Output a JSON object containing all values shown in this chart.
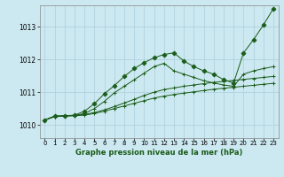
{
  "title": "Graphe pression niveau de la mer (hPa)",
  "bg_color": "#cce8f0",
  "grid_color": "#aacfdc",
  "line_color": "#1a5c1a",
  "xlim": [
    -0.5,
    23.5
  ],
  "ylim": [
    1009.6,
    1013.65
  ],
  "xticks": [
    0,
    1,
    2,
    3,
    4,
    5,
    6,
    7,
    8,
    9,
    10,
    11,
    12,
    13,
    14,
    15,
    16,
    17,
    18,
    19,
    20,
    21,
    22,
    23
  ],
  "yticks": [
    1010,
    1011,
    1012,
    1013
  ],
  "lines": [
    {
      "x": [
        0,
        1,
        2,
        3,
        4,
        5,
        6,
        7,
        8,
        9,
        10,
        11,
        12,
        13,
        14,
        15,
        16,
        17,
        18,
        19,
        20,
        21,
        22,
        23
      ],
      "y": [
        1010.15,
        1010.25,
        1010.27,
        1010.28,
        1010.3,
        1010.35,
        1010.42,
        1010.5,
        1010.58,
        1010.66,
        1010.74,
        1010.82,
        1010.88,
        1010.93,
        1010.97,
        1011.01,
        1011.05,
        1011.09,
        1011.12,
        1011.15,
        1011.18,
        1011.21,
        1011.24,
        1011.27
      ],
      "marker": "+"
    },
    {
      "x": [
        0,
        1,
        2,
        3,
        4,
        5,
        6,
        7,
        8,
        9,
        10,
        11,
        12,
        13,
        14,
        15,
        16,
        17,
        18,
        19,
        20,
        21,
        22,
        23
      ],
      "y": [
        1010.15,
        1010.26,
        1010.28,
        1010.29,
        1010.32,
        1010.38,
        1010.46,
        1010.56,
        1010.67,
        1010.78,
        1010.9,
        1011.0,
        1011.08,
        1011.13,
        1011.18,
        1011.22,
        1011.26,
        1011.3,
        1011.33,
        1011.36,
        1011.39,
        1011.42,
        1011.45,
        1011.48
      ],
      "marker": "+"
    },
    {
      "x": [
        0,
        1,
        2,
        3,
        4,
        5,
        6,
        7,
        8,
        9,
        10,
        11,
        12,
        13,
        14,
        15,
        16,
        17,
        18,
        19,
        20,
        21,
        22,
        23
      ],
      "y": [
        1010.15,
        1010.27,
        1010.28,
        1010.29,
        1010.35,
        1010.5,
        1010.72,
        1010.98,
        1011.18,
        1011.38,
        1011.58,
        1011.78,
        1011.88,
        1011.65,
        1011.55,
        1011.45,
        1011.35,
        1011.28,
        1011.22,
        1011.18,
        1011.55,
        1011.65,
        1011.72,
        1011.78
      ],
      "marker": "+"
    },
    {
      "x": [
        0,
        1,
        2,
        3,
        4,
        5,
        6,
        7,
        8,
        9,
        10,
        11,
        12,
        13,
        14,
        15,
        16,
        17,
        18,
        19,
        20,
        21,
        22,
        23
      ],
      "y": [
        1010.15,
        1010.27,
        1010.28,
        1010.3,
        1010.42,
        1010.65,
        1010.95,
        1011.2,
        1011.48,
        1011.72,
        1011.9,
        1012.05,
        1012.15,
        1012.2,
        1011.95,
        1011.78,
        1011.65,
        1011.55,
        1011.38,
        1011.28,
        1012.2,
        1012.6,
        1013.05,
        1013.55
      ],
      "marker": "D"
    }
  ]
}
